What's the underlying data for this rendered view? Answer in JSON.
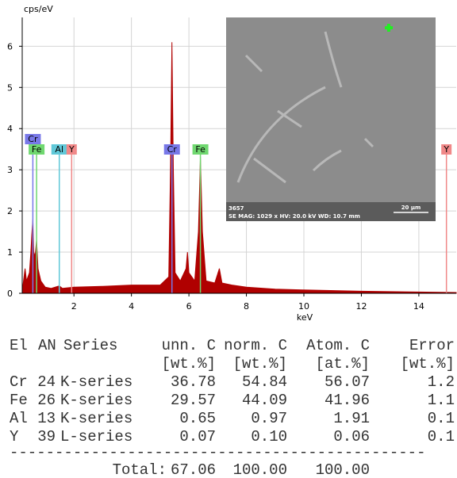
{
  "chart_data": {
    "type": "area",
    "y_label": "cps/eV",
    "x_label": "keV",
    "color": "#b00000",
    "x": [
      0.2,
      0.3,
      0.35,
      0.45,
      0.5,
      0.53,
      0.55,
      0.57,
      0.6,
      0.65,
      0.7,
      0.75,
      0.85,
      1.0,
      1.2,
      1.49,
      1.6,
      2.0,
      3.0,
      4.0,
      5.0,
      5.3,
      5.36,
      5.41,
      5.46,
      5.52,
      5.7,
      5.9,
      5.95,
      6.0,
      6.2,
      6.33,
      6.4,
      6.47,
      6.6,
      6.9,
      7.06,
      7.15,
      7.5,
      8.0,
      9.0,
      10.0,
      12.0,
      14.0,
      15.3
    ],
    "values": [
      0.05,
      0.6,
      0.3,
      0.5,
      1.0,
      1.4,
      1.6,
      1.8,
      1.0,
      0.9,
      1.3,
      0.6,
      0.3,
      0.15,
      0.12,
      0.18,
      0.12,
      0.15,
      0.17,
      0.2,
      0.2,
      0.4,
      3.0,
      6.1,
      3.0,
      0.5,
      0.3,
      0.6,
      1.0,
      0.5,
      0.3,
      1.5,
      3.3,
      1.5,
      0.3,
      0.25,
      0.6,
      0.25,
      0.2,
      0.15,
      0.1,
      0.08,
      0.05,
      0.03,
      0.02
    ],
    "xlim": [
      0.2,
      15.3
    ],
    "ylim": [
      0,
      6.7
    ],
    "xticks": [
      2,
      4,
      6,
      8,
      10,
      12,
      14
    ],
    "yticks": [
      0,
      1,
      2,
      3,
      4,
      5,
      6
    ],
    "grid": true,
    "markers": [
      {
        "label": "Cr",
        "energy": 0.57,
        "color": "#7878e8"
      },
      {
        "label": "Fe",
        "energy": 0.7,
        "color": "#70d870"
      },
      {
        "label": "Al",
        "energy": 1.49,
        "color": "#60c8d8"
      },
      {
        "label": "Y",
        "energy": 1.92,
        "color": "#f08888"
      },
      {
        "label": "Cr",
        "energy": 5.41,
        "color": "#7878e8"
      },
      {
        "label": "Fe",
        "energy": 6.4,
        "color": "#70d870"
      },
      {
        "label": "Y",
        "energy": 14.96,
        "color": "#f08888"
      }
    ]
  },
  "image": {
    "id": "3657",
    "info": "SE  MAG: 1029 x  HV: 20.0 kV  WD: 10.7 mm",
    "scale_bar": "20 µm"
  },
  "table": {
    "header": [
      "El",
      "AN",
      "Series",
      "unn. C",
      "norm. C",
      "Atom. C",
      "Error"
    ],
    "units": [
      "[wt.%]",
      "[wt.%]",
      "[at.%]",
      "[wt.%]"
    ],
    "rows": [
      [
        "Cr",
        "24",
        "K-series",
        "36.78",
        "54.84",
        "56.07",
        "1.2"
      ],
      [
        "Fe",
        "26",
        "K-series",
        "29.57",
        "44.09",
        "41.96",
        "1.1"
      ],
      [
        "Al",
        "13",
        "K-series",
        "0.65",
        "0.97",
        "1.91",
        "0.1"
      ],
      [
        "Y",
        "39",
        "L-series",
        "0.07",
        "0.10",
        "0.06",
        "0.1"
      ]
    ],
    "separator": "----------------------------------------------",
    "total": {
      "label": "Total:",
      "values": [
        "67.06",
        "100.00",
        "100.00"
      ]
    }
  }
}
